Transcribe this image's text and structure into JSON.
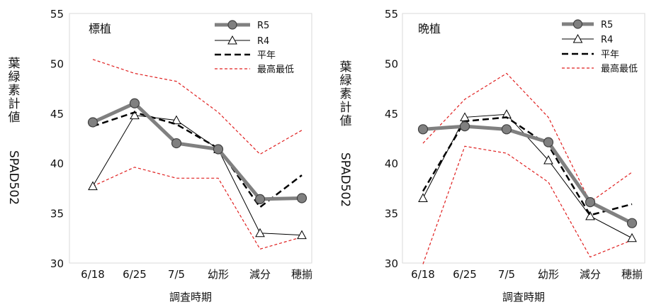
{
  "chart_data": [
    {
      "type": "line",
      "panel_label": "標植",
      "categories": [
        "6/18",
        "6/25",
        "7/5",
        "幼形",
        "減分",
        "穂揃"
      ],
      "xlabel": "調査時期",
      "ylabel_main": "葉緑素計値",
      "ylabel_unit": "SPAD502",
      "ylim": [
        30,
        55
      ],
      "yticks": [
        "30",
        "35",
        "40",
        "45",
        "50",
        "55"
      ],
      "grid": false,
      "legend_position": "top-right",
      "series": [
        {
          "name": "R5",
          "values": [
            44.1,
            46.0,
            42.0,
            41.4,
            36.4,
            36.5
          ],
          "color": "#808080",
          "style": "thick-circle"
        },
        {
          "name": "R4",
          "values": [
            37.7,
            44.8,
            44.3,
            41.4,
            33.0,
            32.8
          ],
          "color": "#000000",
          "style": "thin-triangle"
        },
        {
          "name": "平年",
          "values": [
            43.7,
            45.1,
            43.9,
            41.5,
            35.6,
            38.8
          ],
          "color": "#000000",
          "style": "dashed"
        },
        {
          "name": "最高最低",
          "values": [
            50.4,
            49.0,
            48.2,
            45.1,
            40.9,
            43.3
          ],
          "color": "#e02020",
          "style": "red-dashed"
        },
        {
          "name": "",
          "values": [
            37.7,
            39.6,
            38.5,
            38.5,
            31.4,
            32.6
          ],
          "color": "#e02020",
          "style": "red-dashed"
        }
      ]
    },
    {
      "type": "line",
      "panel_label": "晩植",
      "categories": [
        "6/18",
        "6/25",
        "7/5",
        "幼形",
        "減分",
        "穂揃"
      ],
      "xlabel": "調査時期",
      "ylabel_main": "葉緑素計値",
      "ylabel_unit": "SPAD502",
      "ylim": [
        30,
        55
      ],
      "yticks": [
        "30",
        "35",
        "40",
        "45",
        "50",
        "55"
      ],
      "grid": false,
      "legend_position": "top-right",
      "series": [
        {
          "name": "R5",
          "values": [
            43.4,
            43.7,
            43.4,
            42.1,
            36.1,
            34.0
          ],
          "color": "#808080",
          "style": "thick-circle"
        },
        {
          "name": "R4",
          "values": [
            36.5,
            44.6,
            44.9,
            40.3,
            34.7,
            32.5
          ],
          "color": "#000000",
          "style": "thin-triangle"
        },
        {
          "name": "平年",
          "values": [
            37.2,
            44.2,
            44.6,
            41.8,
            34.8,
            35.9
          ],
          "color": "#000000",
          "style": "dashed"
        },
        {
          "name": "最高最低",
          "values": [
            42.0,
            46.4,
            49.0,
            44.6,
            36.1,
            39.1
          ],
          "color": "#e02020",
          "style": "red-dashed"
        },
        {
          "name": "",
          "values": [
            29.9,
            41.7,
            41.0,
            38.1,
            30.6,
            32.3
          ],
          "color": "#e02020",
          "style": "red-dashed"
        }
      ]
    }
  ]
}
